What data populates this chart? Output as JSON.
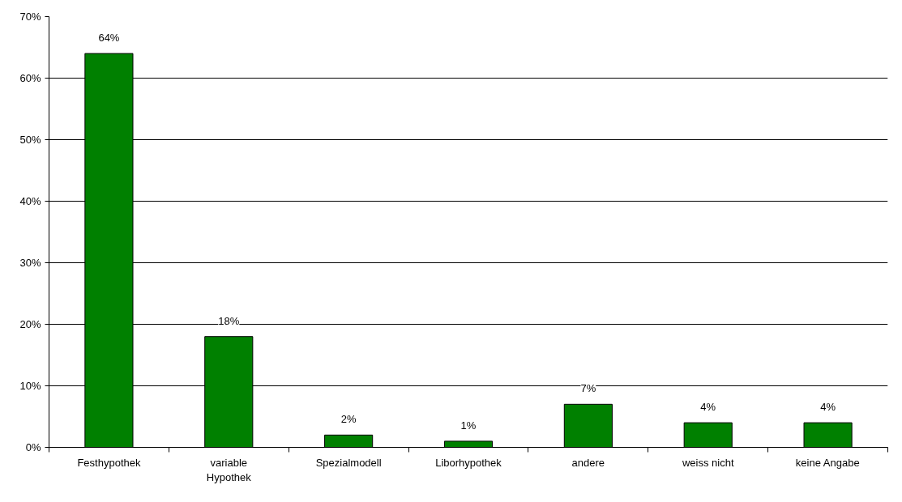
{
  "chart_data": {
    "type": "bar",
    "categories": [
      "Festhypothek",
      "variable\nHypothek",
      "Spezialmodell",
      "Liborhypothek",
      "andere",
      "weiss nicht",
      "keine Angabe"
    ],
    "values": [
      64,
      18,
      2,
      1,
      7,
      4,
      4
    ],
    "value_labels": [
      "64%",
      "18%",
      "2%",
      "1%",
      "7%",
      "4%",
      "4%"
    ],
    "color": "#008000",
    "ylim": [
      0,
      70
    ],
    "yticks": [
      {
        "value": 0,
        "label": "0%"
      },
      {
        "value": 10,
        "label": "10%"
      },
      {
        "value": 20,
        "label": "20%"
      },
      {
        "value": 30,
        "label": "30%"
      },
      {
        "value": 40,
        "label": "40%"
      },
      {
        "value": 50,
        "label": "50%"
      },
      {
        "value": 60,
        "label": "60%"
      },
      {
        "value": 70,
        "label": "70%"
      }
    ],
    "grid": "y"
  }
}
